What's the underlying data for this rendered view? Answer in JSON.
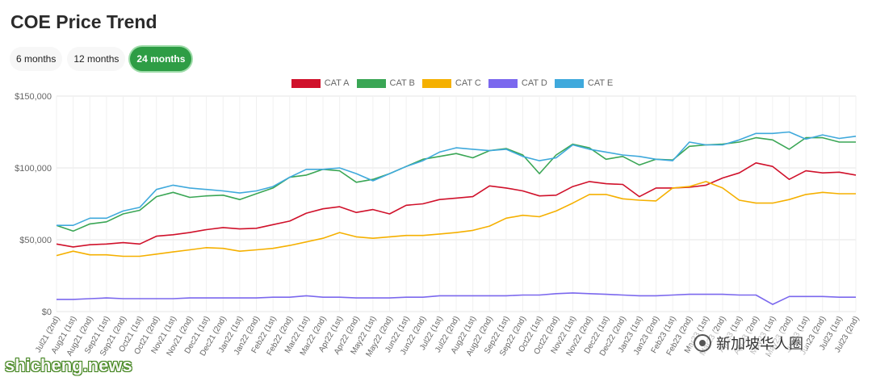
{
  "header": {
    "title": "COE Price Trend"
  },
  "range_tabs": [
    {
      "label": "6 months",
      "active": false
    },
    {
      "label": "12 months",
      "active": false
    },
    {
      "label": "24 months",
      "active": true
    }
  ],
  "watermarks": {
    "site": "shicheng.news",
    "cn": "新加坡华人圈"
  },
  "chart_data": {
    "type": "line",
    "title": "",
    "xlabel": "",
    "ylabel": "",
    "ylim": [
      0,
      150000
    ],
    "yticks": [
      0,
      50000,
      100000,
      150000
    ],
    "ytick_labels": [
      "$0",
      "$50,000",
      "$100,000",
      "$150,000"
    ],
    "grid": true,
    "legend_position": "top-center",
    "categories": [
      "Jul21 (2nd)",
      "Aug21 (1st)",
      "Aug21 (2nd)",
      "Sep21 (1st)",
      "Sep21 (2nd)",
      "Oct21 (1st)",
      "Oct21 (2nd)",
      "Nov21 (1st)",
      "Nov21 (2nd)",
      "Dec21 (1st)",
      "Dec21 (2nd)",
      "Jan22 (1st)",
      "Jan22 (2nd)",
      "Feb22 (1st)",
      "Feb22 (2nd)",
      "Mar22 (1st)",
      "Mar22 (2nd)",
      "Apr22 (1st)",
      "Apr22 (2nd)",
      "May22 (1st)",
      "May22 (2nd)",
      "Jun22 (1st)",
      "Jun22 (2nd)",
      "Jul22 (1st)",
      "Jul22 (2nd)",
      "Aug22 (1st)",
      "Aug22 (2nd)",
      "Sep22 (1st)",
      "Sep22 (2nd)",
      "Oct22 (1st)",
      "Oct22 (2nd)",
      "Nov22 (1st)",
      "Nov22 (2nd)",
      "Dec22 (1st)",
      "Dec22 (2nd)",
      "Jan23 (1st)",
      "Jan23 (2nd)",
      "Feb23 (1st)",
      "Feb23 (2nd)",
      "Mar23 (1st)",
      "Mar23 (2nd)",
      "Apr23 (1st)",
      "Apr23 (2nd)",
      "May23 (1st)",
      "May23 (2nd)",
      "Jun23 (1st)",
      "Jun23 (2nd)",
      "Jul23 (1st)",
      "Jul23 (2nd)"
    ],
    "series": [
      {
        "name": "CAT A",
        "color": "#d0112b",
        "values": [
          47000,
          45000,
          46500,
          47000,
          48000,
          47000,
          52500,
          53500,
          55000,
          57000,
          58500,
          57500,
          58000,
          60500,
          63000,
          68500,
          71500,
          73000,
          69000,
          71000,
          68000,
          74000,
          75000,
          78000,
          79000,
          80000,
          87500,
          86000,
          84000,
          80500,
          81000,
          87000,
          90500,
          89000,
          88500,
          80000,
          86000,
          86000,
          86500,
          88000,
          93000,
          96500,
          103500,
          101000,
          92000,
          98000,
          96500,
          97000,
          95000
        ]
      },
      {
        "name": "CAT B",
        "color": "#3aa655",
        "values": [
          60000,
          56000,
          61000,
          62500,
          68000,
          70500,
          80000,
          83000,
          79500,
          80500,
          81000,
          78000,
          82000,
          86000,
          93500,
          95000,
          99000,
          98000,
          90000,
          92000,
          96000,
          101000,
          106000,
          108000,
          110000,
          107000,
          112000,
          113500,
          109000,
          96000,
          109000,
          116500,
          114000,
          106000,
          108000,
          102000,
          106000,
          105500,
          115000,
          116000,
          116500,
          118000,
          121000,
          119500,
          113000,
          121000,
          121000,
          118000,
          118000
        ]
      },
      {
        "name": "CAT C",
        "color": "#f5b000",
        "values": [
          39000,
          42000,
          39500,
          39500,
          38500,
          38500,
          40000,
          41500,
          43000,
          44500,
          44000,
          42000,
          43000,
          44000,
          46000,
          48500,
          51000,
          55000,
          52000,
          51000,
          52000,
          53000,
          53000,
          54000,
          55000,
          56500,
          59500,
          65000,
          67000,
          66000,
          70000,
          75500,
          81500,
          81500,
          78500,
          77500,
          77000,
          86000,
          87000,
          90500,
          86000,
          77500,
          75500,
          75500,
          78000,
          81500,
          83000,
          82000,
          82000
        ]
      },
      {
        "name": "CAT D",
        "color": "#7b68ee",
        "values": [
          8500,
          8500,
          9000,
          9500,
          9000,
          9000,
          9000,
          9000,
          9500,
          9500,
          9500,
          9500,
          9500,
          10000,
          10000,
          11000,
          10000,
          10000,
          9500,
          9500,
          9500,
          10000,
          10000,
          11000,
          11000,
          11000,
          11000,
          11000,
          11500,
          11500,
          12500,
          13000,
          12500,
          12000,
          11500,
          11000,
          11000,
          11500,
          12000,
          12000,
          12000,
          11500,
          11500,
          5000,
          10500,
          10500,
          10500,
          10000,
          10000
        ]
      },
      {
        "name": "CAT E",
        "color": "#3fa9dc",
        "values": [
          60000,
          60000,
          65000,
          65000,
          70000,
          72500,
          85000,
          88000,
          86000,
          85000,
          84000,
          82500,
          84000,
          87000,
          93500,
          99000,
          99000,
          100000,
          96000,
          91000,
          96000,
          101000,
          105000,
          111000,
          114000,
          113000,
          112000,
          113000,
          108000,
          105000,
          107000,
          116000,
          113000,
          111000,
          109000,
          108000,
          106000,
          105000,
          118000,
          116000,
          116000,
          119500,
          124000,
          124000,
          125000,
          120000,
          123000,
          120500,
          122000
        ]
      }
    ]
  }
}
